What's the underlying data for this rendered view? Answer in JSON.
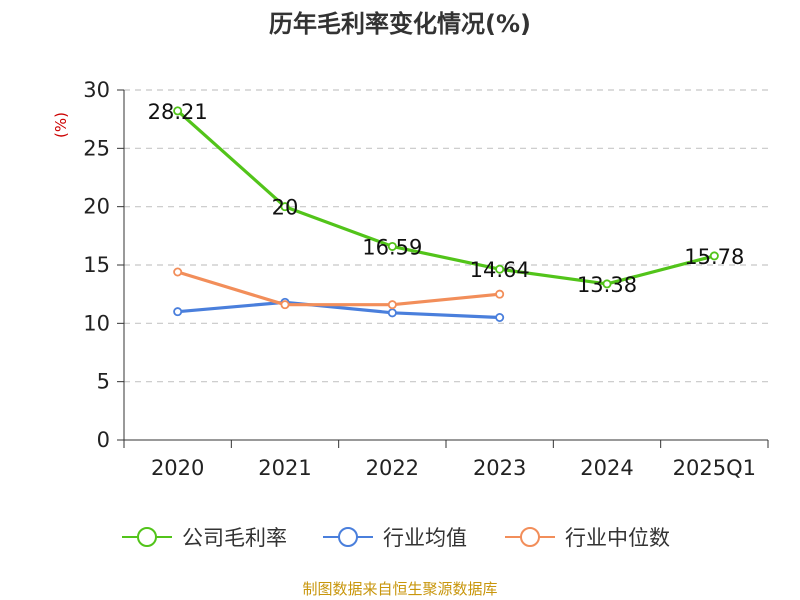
{
  "chart_data": {
    "type": "line",
    "title": "历年毛利率变化情况(%)",
    "ylabel": "(%)",
    "xlabel": "",
    "categories": [
      "2020",
      "2021",
      "2022",
      "2023",
      "2024",
      "2025Q1"
    ],
    "ylim": [
      0,
      30
    ],
    "yticks": [
      0,
      5,
      10,
      15,
      20,
      25,
      30
    ],
    "grid": "horizontal dashed",
    "legend_position": "bottom",
    "series": [
      {
        "name": "公司毛利率",
        "color": "#52c41a",
        "values": [
          28.21,
          20,
          16.59,
          14.64,
          13.38,
          15.78
        ],
        "labels": [
          "28.21",
          "20",
          "16.59",
          "14.64",
          "13.38",
          "15.78"
        ]
      },
      {
        "name": "行业均值",
        "color": "#4a7fdc",
        "values": [
          11.0,
          11.8,
          10.9,
          10.5,
          null,
          null
        ]
      },
      {
        "name": "行业中位数",
        "color": "#f28e5a",
        "values": [
          14.4,
          11.6,
          11.6,
          12.5,
          null,
          null
        ]
      }
    ]
  },
  "footer": {
    "source": "制图数据来自恒生聚源数据库"
  }
}
